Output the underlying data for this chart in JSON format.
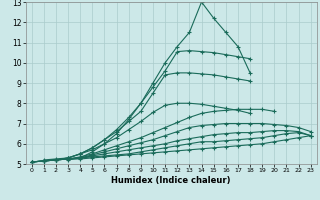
{
  "xlabel": "Humidex (Indice chaleur)",
  "bg_color": "#cce8e8",
  "grid_color": "#aacccc",
  "line_color": "#1a6b5a",
  "xlim": [
    -0.5,
    23.5
  ],
  "ylim": [
    5,
    13
  ],
  "xticks": [
    0,
    1,
    2,
    3,
    4,
    5,
    6,
    7,
    8,
    9,
    10,
    11,
    12,
    13,
    14,
    15,
    16,
    17,
    18,
    19,
    20,
    21,
    22,
    23
  ],
  "yticks": [
    5,
    6,
    7,
    8,
    9,
    10,
    11,
    12,
    13
  ],
  "series": [
    {
      "x": [
        0,
        1,
        2,
        3,
        4,
        5,
        6,
        7,
        8,
        9,
        10,
        11,
        12,
        13,
        14,
        15,
        16,
        17,
        18,
        19,
        20,
        21,
        22,
        23
      ],
      "y": [
        5.1,
        5.15,
        5.2,
        5.25,
        5.25,
        5.3,
        5.35,
        5.4,
        5.45,
        5.5,
        5.55,
        5.6,
        5.65,
        5.7,
        5.75,
        5.8,
        5.85,
        5.9,
        5.95,
        6.0,
        6.1,
        6.2,
        6.3,
        6.4
      ]
    },
    {
      "x": [
        0,
        1,
        2,
        3,
        4,
        5,
        6,
        7,
        8,
        9,
        10,
        11,
        12,
        13,
        14,
        15,
        16,
        17,
        18,
        19,
        20,
        21,
        22,
        23
      ],
      "y": [
        5.1,
        5.15,
        5.2,
        5.25,
        5.3,
        5.35,
        5.4,
        5.45,
        5.5,
        5.6,
        5.7,
        5.8,
        5.9,
        6.0,
        6.1,
        6.1,
        6.15,
        6.2,
        6.25,
        6.3,
        6.4,
        6.5,
        6.55,
        6.4
      ]
    },
    {
      "x": [
        0,
        1,
        2,
        3,
        4,
        5,
        6,
        7,
        8,
        9,
        10,
        11,
        12,
        13,
        14,
        15,
        16,
        17,
        18,
        19,
        20,
        21,
        22,
        23
      ],
      "y": [
        5.1,
        5.15,
        5.2,
        5.25,
        5.3,
        5.4,
        5.5,
        5.6,
        5.7,
        5.8,
        5.9,
        6.0,
        6.15,
        6.25,
        6.35,
        6.45,
        6.5,
        6.55,
        6.55,
        6.6,
        6.65,
        6.65,
        6.6,
        6.4
      ]
    },
    {
      "x": [
        0,
        1,
        2,
        3,
        4,
        5,
        6,
        7,
        8,
        9,
        10,
        11,
        12,
        13,
        14,
        15,
        16,
        17,
        18,
        19,
        20,
        21,
        22,
        23
      ],
      "y": [
        5.1,
        5.15,
        5.2,
        5.25,
        5.3,
        5.45,
        5.6,
        5.75,
        5.9,
        6.05,
        6.2,
        6.4,
        6.6,
        6.8,
        6.9,
        6.95,
        7.0,
        7.0,
        7.0,
        7.0,
        6.95,
        6.9,
        6.8,
        6.6
      ]
    },
    {
      "x": [
        0,
        1,
        2,
        3,
        4,
        5,
        6,
        7,
        8,
        9,
        10,
        11,
        12,
        13,
        14,
        15,
        16,
        17,
        18,
        19,
        20
      ],
      "y": [
        5.1,
        5.15,
        5.2,
        5.25,
        5.35,
        5.5,
        5.7,
        5.9,
        6.1,
        6.3,
        6.55,
        6.8,
        7.05,
        7.3,
        7.5,
        7.6,
        7.65,
        7.7,
        7.7,
        7.7,
        7.6
      ]
    },
    {
      "x": [
        0,
        1,
        2,
        3,
        4,
        5,
        6,
        7,
        8,
        9,
        10,
        11,
        12,
        13,
        14,
        15,
        16,
        17,
        18
      ],
      "y": [
        5.1,
        5.15,
        5.2,
        5.3,
        5.5,
        5.7,
        6.0,
        6.3,
        6.7,
        7.1,
        7.55,
        7.9,
        8.0,
        8.0,
        7.95,
        7.85,
        7.75,
        7.65,
        7.5
      ]
    },
    {
      "x": [
        1,
        2,
        3,
        4,
        5,
        6,
        7,
        8,
        9,
        10,
        11,
        12,
        13,
        14,
        15,
        16,
        17,
        18
      ],
      "y": [
        5.2,
        5.25,
        5.3,
        5.5,
        5.8,
        6.2,
        6.6,
        7.1,
        7.6,
        8.5,
        9.4,
        9.5,
        9.5,
        9.45,
        9.4,
        9.3,
        9.2,
        9.1
      ]
    },
    {
      "x": [
        2,
        3,
        4,
        5,
        6,
        7,
        8,
        9,
        10,
        11,
        12,
        13,
        14,
        15,
        16,
        17,
        18
      ],
      "y": [
        5.2,
        5.3,
        5.5,
        5.8,
        6.2,
        6.7,
        7.3,
        8.0,
        8.8,
        9.6,
        10.55,
        10.6,
        10.55,
        10.5,
        10.4,
        10.3,
        10.2
      ]
    },
    {
      "x": [
        3,
        4,
        5,
        6,
        7,
        8,
        9,
        10,
        11,
        12,
        13,
        14,
        15,
        16,
        17,
        18
      ],
      "y": [
        5.2,
        5.3,
        5.6,
        6.0,
        6.5,
        7.2,
        8.0,
        9.0,
        10.0,
        10.8,
        11.5,
        13.0,
        12.2,
        11.5,
        10.8,
        9.5
      ]
    }
  ]
}
